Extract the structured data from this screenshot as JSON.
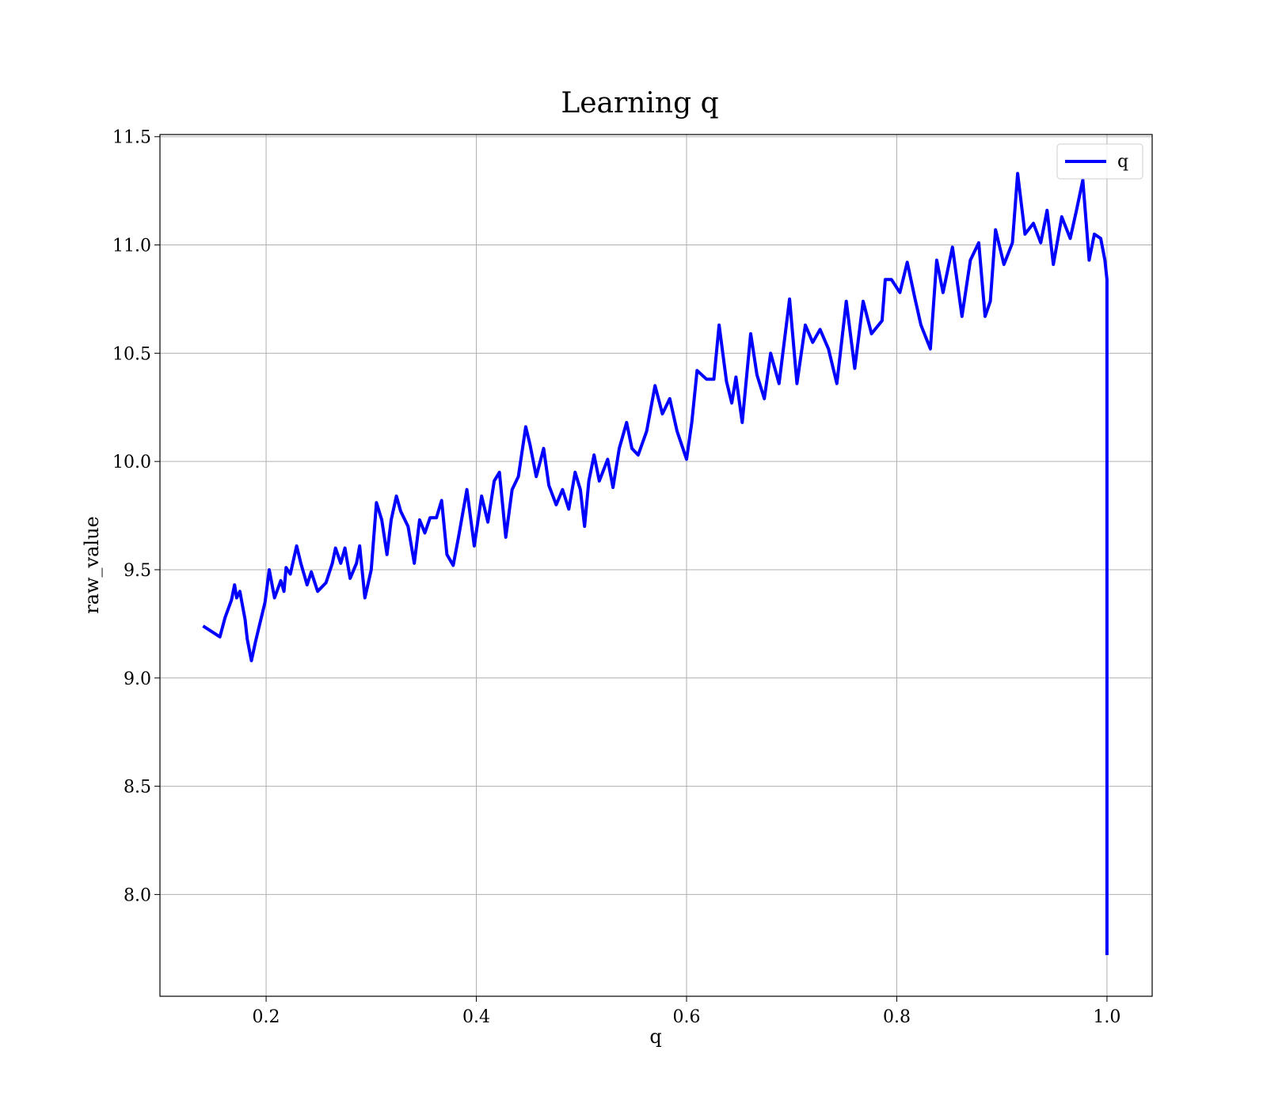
{
  "chart_data": {
    "type": "line",
    "title": "Learning q",
    "x_label": "q",
    "y_label": "raw_value",
    "xlim": [
      0.099,
      1.043
    ],
    "ylim": [
      7.53,
      11.51
    ],
    "xticks": [
      0.2,
      0.4,
      0.6,
      0.8,
      {
        "value": 1.0,
        "label": "1.0"
      }
    ],
    "yticks": [
      {
        "value": 8.0,
        "label": "8.0"
      },
      8.5,
      {
        "value": 9.0,
        "label": "9.0"
      },
      9.5,
      {
        "value": 10.0,
        "label": "10.0"
      },
      10.5,
      {
        "value": 11.0,
        "label": "11.0"
      },
      11.5
    ],
    "grid": true,
    "legend": "upper right",
    "x": [
      0.14,
      0.156,
      0.161,
      0.167,
      0.17,
      0.172,
      0.175,
      0.18,
      0.182,
      0.186,
      0.19,
      0.195,
      0.199,
      0.203,
      0.208,
      0.214,
      0.217,
      0.219,
      0.223,
      0.229,
      0.233,
      0.239,
      0.243,
      0.249,
      0.257,
      0.263,
      0.266,
      0.271,
      0.275,
      0.28,
      0.286,
      0.289,
      0.294,
      0.3,
      0.305,
      0.31,
      0.315,
      0.319,
      0.324,
      0.328,
      0.335,
      0.341,
      0.346,
      0.351,
      0.356,
      0.362,
      0.367,
      0.372,
      0.378,
      0.383,
      0.391,
      0.398,
      0.405,
      0.411,
      0.417,
      0.422,
      0.428,
      0.434,
      0.44,
      0.447,
      0.451,
      0.457,
      0.464,
      0.469,
      0.476,
      0.482,
      0.488,
      0.494,
      0.499,
      0.503,
      0.507,
      0.512,
      0.517,
      0.525,
      0.53,
      0.536,
      0.543,
      0.548,
      0.554,
      0.562,
      0.57,
      0.577,
      0.584,
      0.591,
      0.6,
      0.605,
      0.61,
      0.619,
      0.626,
      0.631,
      0.638,
      0.643,
      0.647,
      0.653,
      0.661,
      0.667,
      0.674,
      0.68,
      0.688,
      0.698,
      0.705,
      0.713,
      0.72,
      0.727,
      0.735,
      0.743,
      0.752,
      0.76,
      0.768,
      0.776,
      0.786,
      0.789,
      0.795,
      0.803,
      0.81,
      0.817,
      0.823,
      0.832,
      0.838,
      0.844,
      0.853,
      0.862,
      0.87,
      0.878,
      0.884,
      0.889,
      0.894,
      0.902,
      0.91,
      0.915,
      0.922,
      0.93,
      0.937,
      0.943,
      0.949,
      0.957,
      0.965,
      0.971,
      0.977,
      0.983,
      0.988,
      0.994,
      0.998,
      1.0,
      1.0
    ],
    "series": [
      {
        "name": "q",
        "color": "#0000ff",
        "values": [
          9.24,
          9.19,
          9.28,
          9.36,
          9.43,
          9.37,
          9.4,
          9.27,
          9.18,
          9.08,
          9.17,
          9.27,
          9.35,
          9.5,
          9.37,
          9.45,
          9.4,
          9.51,
          9.48,
          9.61,
          9.53,
          9.43,
          9.49,
          9.4,
          9.44,
          9.53,
          9.6,
          9.53,
          9.6,
          9.46,
          9.53,
          9.61,
          9.37,
          9.5,
          9.81,
          9.73,
          9.57,
          9.73,
          9.84,
          9.77,
          9.7,
          9.53,
          9.73,
          9.67,
          9.74,
          9.74,
          9.82,
          9.57,
          9.52,
          9.65,
          9.87,
          9.61,
          9.84,
          9.72,
          9.91,
          9.95,
          9.65,
          9.87,
          9.93,
          10.16,
          10.08,
          9.93,
          10.06,
          9.89,
          9.8,
          9.87,
          9.78,
          9.95,
          9.87,
          9.7,
          9.91,
          10.03,
          9.91,
          10.01,
          9.88,
          10.06,
          10.18,
          10.06,
          10.03,
          10.14,
          10.35,
          10.22,
          10.29,
          10.14,
          10.01,
          10.18,
          10.42,
          10.38,
          10.38,
          10.63,
          10.37,
          10.27,
          10.39,
          10.18,
          10.59,
          10.4,
          10.29,
          10.5,
          10.36,
          10.75,
          10.36,
          10.63,
          10.55,
          10.61,
          10.52,
          10.36,
          10.74,
          10.43,
          10.74,
          10.59,
          10.65,
          10.84,
          10.84,
          10.78,
          10.92,
          10.76,
          10.63,
          10.52,
          10.93,
          10.78,
          10.99,
          10.67,
          10.93,
          11.01,
          10.67,
          10.74,
          11.07,
          10.91,
          11.01,
          11.33,
          11.05,
          11.1,
          11.01,
          11.16,
          10.91,
          11.13,
          11.03,
          11.16,
          11.3,
          10.93,
          11.05,
          11.03,
          10.93,
          10.84,
          7.72
        ]
      }
    ]
  }
}
